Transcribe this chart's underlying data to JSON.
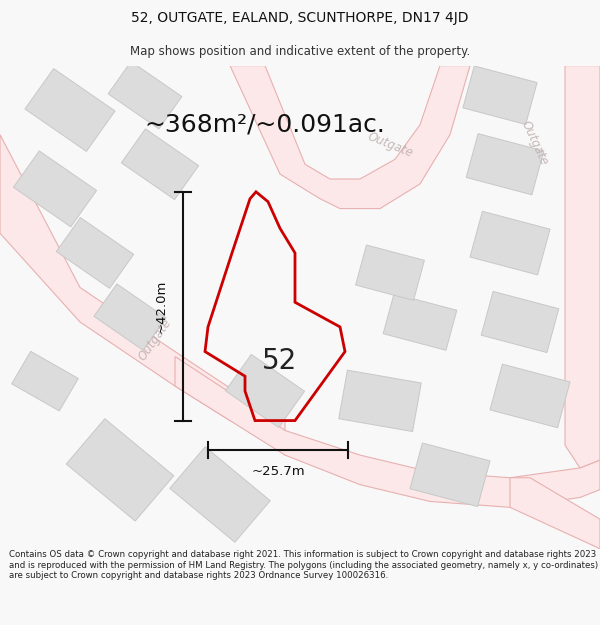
{
  "title_line1": "52, OUTGATE, EALAND, SCUNTHORPE, DN17 4JD",
  "title_line2": "Map shows position and indicative extent of the property.",
  "area_text": "~368m²/~0.091ac.",
  "label_42": "~42.0m",
  "label_25": "~25.7m",
  "label_52": "52",
  "footer_text": "Contains OS data © Crown copyright and database right 2021. This information is subject to Crown copyright and database rights 2023 and is reproduced with the permission of HM Land Registry. The polygons (including the associated geometry, namely x, y co-ordinates) are subject to Crown copyright and database rights 2023 Ordnance Survey 100026316.",
  "bg_color": "#f8f8f8",
  "map_bg": "#ffffff",
  "road_color": "#e8b0b0",
  "road_fill": "#fce8e8",
  "building_color": "#c8c8c8",
  "building_fill": "#dcdcdc",
  "highlight_color": "#cc0000",
  "dim_line_color": "#111111",
  "street_label_color": "#c0b0b0",
  "title_fontsize": 10,
  "subtitle_fontsize": 8.5,
  "area_fontsize": 18,
  "footer_fontsize": 6.2
}
